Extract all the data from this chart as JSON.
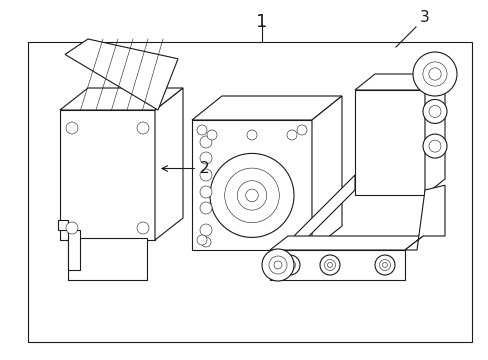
{
  "title": "1",
  "label_2": "2",
  "label_3": "3",
  "bg_color": "#ffffff",
  "line_color": "#1a1a1a",
  "line_width": 0.8,
  "thin_line": 0.4,
  "fig_width": 4.89,
  "fig_height": 3.6,
  "dpi": 100
}
